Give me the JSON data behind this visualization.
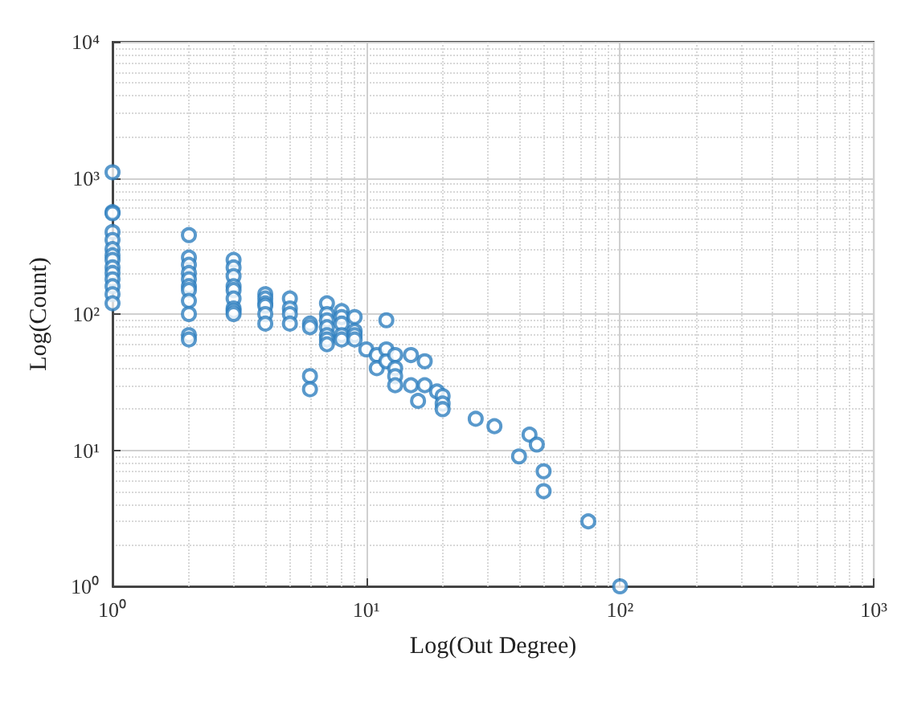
{
  "chart_data": {
    "type": "scatter",
    "xlabel": "Log(Out Degree)",
    "ylabel": "Log(Count)",
    "log": "xy",
    "grid": true,
    "marker": "circle",
    "xlim": [
      1,
      1000
    ],
    "ylim": [
      1,
      10000
    ],
    "xticks": [
      {
        "value": 1,
        "label": "10⁰"
      },
      {
        "value": 10,
        "label": "10¹"
      },
      {
        "value": 100,
        "label": "10²"
      },
      {
        "value": 1000,
        "label": "10³"
      }
    ],
    "yticks": [
      {
        "value": 1,
        "label": "10⁰"
      },
      {
        "value": 10,
        "label": "10¹"
      },
      {
        "value": 100,
        "label": "10²"
      },
      {
        "value": 1000,
        "label": "10³"
      },
      {
        "value": 10000,
        "label": "10⁴"
      }
    ],
    "series": [
      {
        "color": "#2f7fbf",
        "x": [
          1,
          1,
          1,
          1,
          1,
          1,
          1,
          1,
          1,
          1,
          1,
          1,
          1,
          1,
          2,
          2,
          2,
          2,
          2,
          2,
          2,
          2,
          2,
          2,
          2,
          3,
          3,
          3,
          3,
          3,
          3,
          3,
          3,
          3,
          4,
          4,
          4,
          4,
          4,
          4,
          5,
          5,
          5,
          5,
          6,
          6,
          6,
          6,
          7,
          7,
          7,
          7,
          7,
          7,
          7,
          8,
          8,
          8,
          8,
          8,
          9,
          9,
          9,
          9,
          10,
          11,
          11,
          12,
          12,
          12,
          13,
          13,
          13,
          13,
          15,
          15,
          16,
          17,
          17,
          19,
          20,
          20,
          20,
          27,
          32,
          40,
          44,
          47,
          50,
          50,
          75,
          100
        ],
        "values": [
          1100,
          560,
          550,
          400,
          350,
          300,
          270,
          250,
          220,
          200,
          180,
          160,
          140,
          120,
          380,
          260,
          230,
          200,
          180,
          160,
          150,
          125,
          100,
          70,
          65,
          250,
          220,
          190,
          160,
          150,
          130,
          110,
          105,
          100,
          140,
          130,
          120,
          115,
          100,
          85,
          130,
          110,
          100,
          85,
          85,
          80,
          35,
          28,
          120,
          100,
          90,
          80,
          70,
          65,
          60,
          105,
          95,
          85,
          70,
          65,
          95,
          75,
          70,
          65,
          55,
          50,
          40,
          90,
          55,
          45,
          50,
          40,
          35,
          30,
          50,
          30,
          23,
          45,
          30,
          27,
          25,
          22,
          20,
          17,
          15,
          9,
          13,
          11,
          7,
          5,
          3,
          1
        ]
      }
    ]
  }
}
